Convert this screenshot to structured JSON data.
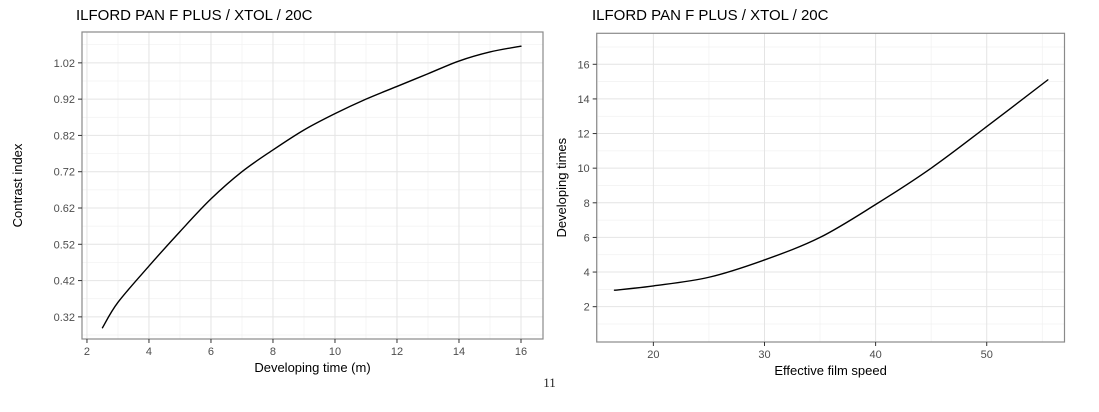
{
  "page": {
    "background": "#ffffff",
    "page_number": "11"
  },
  "colors": {
    "curve": "#000000",
    "grid_major": "#e4e4e4",
    "grid_minor": "#f1f1f1",
    "panel_border": "#8a8a8a",
    "panel_fill": "#ffffff",
    "tick_mark": "#333333",
    "tick_text": "#4d4d4d",
    "title_text": "#000000",
    "axis_title_text": "#000000"
  },
  "chart_data": [
    {
      "type": "line",
      "title": "ILFORD PAN F PLUS / XTOL / 20C",
      "xlabel": "Developing time (m)",
      "ylabel": "Contrast index",
      "xlim": [
        1.84,
        16.71
      ],
      "ylim": [
        0.259,
        1.105
      ],
      "xticks": [
        2,
        4,
        6,
        8,
        10,
        12,
        14,
        16
      ],
      "xtick_labels": [
        "2",
        "4",
        "6",
        "8",
        "10",
        "12",
        "14",
        "16"
      ],
      "yticks": [
        0.32,
        0.42,
        0.52,
        0.62,
        0.72,
        0.82,
        0.92,
        1.02
      ],
      "ytick_labels": [
        "0.32",
        "0.42",
        "0.52",
        "0.62",
        "0.72",
        "0.82",
        "0.92",
        "1.02"
      ],
      "x_minor": [
        3,
        5,
        7,
        9,
        11,
        13,
        15
      ],
      "y_minor": [
        0.27,
        0.37,
        0.47,
        0.57,
        0.67,
        0.77,
        0.87,
        0.97,
        1.07
      ],
      "grid": true,
      "legend": "none",
      "series": [
        {
          "name": "contrast-index-curve",
          "points": [
            [
              2.5,
              0.29
            ],
            [
              3,
              0.36
            ],
            [
              4,
              0.46
            ],
            [
              5,
              0.555
            ],
            [
              6,
              0.645
            ],
            [
              7,
              0.72
            ],
            [
              8,
              0.78
            ],
            [
              9,
              0.835
            ],
            [
              10,
              0.88
            ],
            [
              11,
              0.92
            ],
            [
              12,
              0.955
            ],
            [
              13,
              0.99
            ],
            [
              14,
              1.025
            ],
            [
              15,
              1.05
            ],
            [
              16,
              1.066
            ]
          ]
        }
      ]
    },
    {
      "type": "line",
      "title": "ILFORD PAN F PLUS / XTOL / 20C",
      "xlabel": "Effective film speed",
      "ylabel": "Developing times",
      "xlim": [
        14.9,
        57.0
      ],
      "ylim": [
        -0.04,
        17.79
      ],
      "xticks": [
        20,
        30,
        40,
        50
      ],
      "xtick_labels": [
        "20",
        "30",
        "40",
        "50"
      ],
      "yticks": [
        2,
        4,
        6,
        8,
        10,
        12,
        14,
        16
      ],
      "ytick_labels": [
        "2",
        "4",
        "6",
        "8",
        "10",
        "12",
        "14",
        "16"
      ],
      "x_minor": [
        15,
        25,
        35,
        45,
        55
      ],
      "y_minor": [
        1,
        3,
        5,
        7,
        9,
        11,
        13,
        15,
        17
      ],
      "grid": true,
      "legend": "none",
      "series": [
        {
          "name": "developing-time-curve",
          "points": [
            [
              16.5,
              2.95
            ],
            [
              20,
              3.2
            ],
            [
              25,
              3.7
            ],
            [
              30,
              4.7
            ],
            [
              35,
              6.0
            ],
            [
              40,
              7.9
            ],
            [
              45,
              10.0
            ],
            [
              50,
              12.4
            ],
            [
              55.5,
              15.1
            ]
          ]
        }
      ]
    }
  ]
}
